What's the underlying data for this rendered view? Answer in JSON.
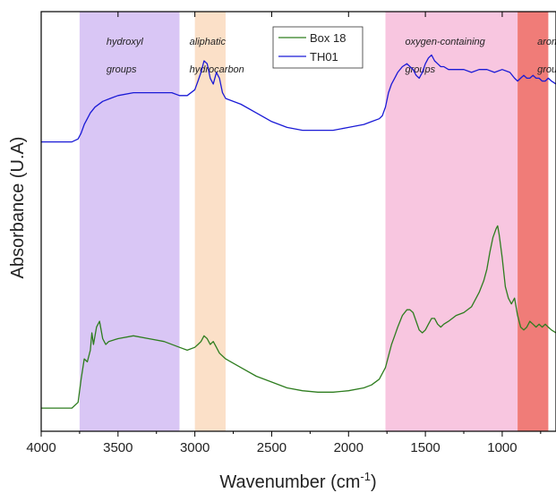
{
  "chart_data": {
    "type": "line",
    "xlabel": "Wavenumber (cm",
    "xlabel_sup": "-1",
    "xlabel_end": ")",
    "ylabel": "Absorbance (U.A)",
    "xlim": [
      4000,
      650
    ],
    "x_reversed": true,
    "xticks": [
      "4000",
      "3500",
      "3000",
      "2500",
      "2000",
      "1500",
      "1000"
    ],
    "grid": false,
    "legend_position": "top-center",
    "bands": [
      {
        "label1": "hydroxyl",
        "label2": "groups",
        "x_from": 3750,
        "x_to": 3100,
        "color": "#d9c6f5"
      },
      {
        "label1": "aliphatic",
        "label2": "hydrocarbon",
        "x_from": 3000,
        "x_to": 2800,
        "color": "#fbe0c8"
      },
      {
        "label1": "oxygen-containing",
        "label2": "groups",
        "x_from": 1760,
        "x_to": 900,
        "color": "#f8c6e0"
      },
      {
        "label1": "aromati",
        "label2": "groups",
        "x_from": 900,
        "x_to": 700,
        "color": "#f07c78"
      }
    ],
    "series": [
      {
        "name": "Box 18",
        "color": "#2e7d1f",
        "x": [
          4000,
          3800,
          3760,
          3740,
          3720,
          3700,
          3680,
          3670,
          3660,
          3640,
          3620,
          3600,
          3580,
          3560,
          3500,
          3400,
          3300,
          3200,
          3100,
          3050,
          3000,
          2980,
          2960,
          2940,
          2920,
          2900,
          2880,
          2860,
          2840,
          2800,
          2700,
          2600,
          2500,
          2400,
          2300,
          2200,
          2100,
          2000,
          1900,
          1850,
          1800,
          1760,
          1740,
          1720,
          1700,
          1680,
          1650,
          1620,
          1600,
          1580,
          1560,
          1540,
          1520,
          1500,
          1480,
          1460,
          1440,
          1420,
          1400,
          1380,
          1350,
          1300,
          1250,
          1200,
          1150,
          1120,
          1100,
          1080,
          1060,
          1040,
          1030,
          1020,
          1000,
          980,
          960,
          940,
          920,
          900,
          880,
          860,
          840,
          820,
          800,
          780,
          760,
          740,
          720,
          700,
          680,
          650
        ],
        "values": [
          0.08,
          0.08,
          0.1,
          0.18,
          0.25,
          0.24,
          0.28,
          0.34,
          0.3,
          0.36,
          0.38,
          0.32,
          0.3,
          0.31,
          0.32,
          0.33,
          0.32,
          0.31,
          0.29,
          0.28,
          0.29,
          0.3,
          0.31,
          0.33,
          0.32,
          0.3,
          0.31,
          0.29,
          0.27,
          0.25,
          0.22,
          0.19,
          0.17,
          0.15,
          0.14,
          0.135,
          0.135,
          0.14,
          0.15,
          0.16,
          0.18,
          0.22,
          0.26,
          0.3,
          0.33,
          0.36,
          0.4,
          0.42,
          0.42,
          0.41,
          0.38,
          0.35,
          0.34,
          0.35,
          0.37,
          0.39,
          0.39,
          0.37,
          0.36,
          0.37,
          0.38,
          0.4,
          0.41,
          0.43,
          0.48,
          0.52,
          0.56,
          0.62,
          0.67,
          0.7,
          0.71,
          0.68,
          0.6,
          0.5,
          0.46,
          0.44,
          0.46,
          0.4,
          0.36,
          0.35,
          0.36,
          0.38,
          0.37,
          0.36,
          0.37,
          0.36,
          0.37,
          0.36,
          0.35,
          0.34
        ]
      },
      {
        "name": "TH01",
        "color": "#1a1ad6",
        "x": [
          4000,
          3800,
          3760,
          3740,
          3720,
          3700,
          3680,
          3650,
          3600,
          3550,
          3500,
          3400,
          3300,
          3200,
          3150,
          3100,
          3050,
          3000,
          2980,
          2960,
          2940,
          2920,
          2900,
          2880,
          2860,
          2840,
          2820,
          2800,
          2700,
          2600,
          2500,
          2400,
          2300,
          2200,
          2100,
          2000,
          1900,
          1850,
          1800,
          1780,
          1760,
          1740,
          1720,
          1700,
          1680,
          1650,
          1620,
          1600,
          1580,
          1560,
          1540,
          1520,
          1500,
          1480,
          1460,
          1440,
          1420,
          1400,
          1380,
          1350,
          1300,
          1250,
          1200,
          1150,
          1100,
          1050,
          1000,
          950,
          920,
          900,
          880,
          860,
          840,
          820,
          800,
          780,
          760,
          740,
          720,
          700,
          680,
          650
        ],
        "values": [
          1.0,
          1.0,
          1.01,
          1.03,
          1.06,
          1.08,
          1.1,
          1.12,
          1.14,
          1.15,
          1.16,
          1.17,
          1.17,
          1.17,
          1.17,
          1.16,
          1.16,
          1.18,
          1.21,
          1.24,
          1.28,
          1.27,
          1.22,
          1.2,
          1.24,
          1.22,
          1.17,
          1.15,
          1.13,
          1.1,
          1.07,
          1.05,
          1.04,
          1.04,
          1.04,
          1.05,
          1.06,
          1.07,
          1.08,
          1.09,
          1.12,
          1.17,
          1.2,
          1.22,
          1.24,
          1.26,
          1.27,
          1.26,
          1.25,
          1.23,
          1.22,
          1.24,
          1.27,
          1.29,
          1.3,
          1.28,
          1.27,
          1.26,
          1.26,
          1.25,
          1.25,
          1.25,
          1.24,
          1.25,
          1.25,
          1.24,
          1.25,
          1.24,
          1.22,
          1.21,
          1.22,
          1.23,
          1.22,
          1.22,
          1.23,
          1.22,
          1.22,
          1.21,
          1.21,
          1.22,
          1.21,
          1.2
        ]
      }
    ]
  }
}
